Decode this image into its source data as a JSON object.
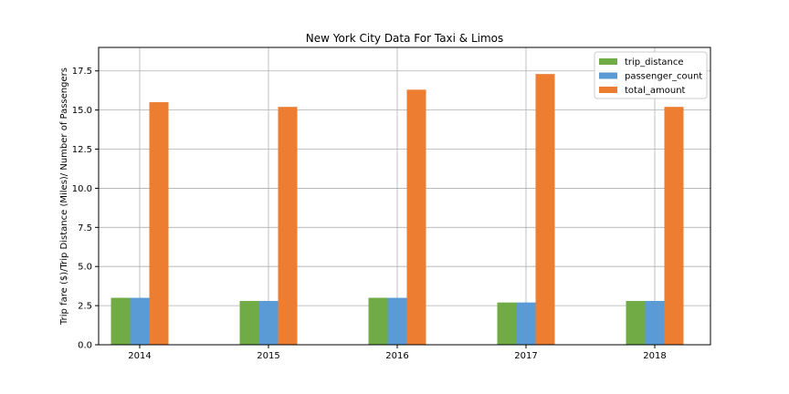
{
  "chart_data": {
    "type": "bar",
    "title": "New York City Data For Taxi & Limos",
    "xlabel": "",
    "ylabel": "Trip fare ($)/Trip Distance (Miles)/ Number of Passengers",
    "categories": [
      "2014",
      "2015",
      "2016",
      "2017",
      "2018"
    ],
    "series": [
      {
        "name": "trip_distance",
        "color": "#70ab46",
        "values": [
          3.0,
          2.8,
          3.0,
          2.7,
          2.8
        ]
      },
      {
        "name": "passenger_count",
        "color": "#5b9bd5",
        "values": [
          3.0,
          2.8,
          3.0,
          2.7,
          2.8
        ]
      },
      {
        "name": "total_amount",
        "color": "#ed7d31",
        "values": [
          15.5,
          15.2,
          16.3,
          17.3,
          15.2
        ]
      }
    ],
    "ylim": [
      0,
      19
    ],
    "yticks": [
      "0.0",
      "2.5",
      "5.0",
      "7.5",
      "10.0",
      "12.5",
      "15.0",
      "17.5"
    ],
    "grid": true,
    "legend_position": "top-right"
  }
}
